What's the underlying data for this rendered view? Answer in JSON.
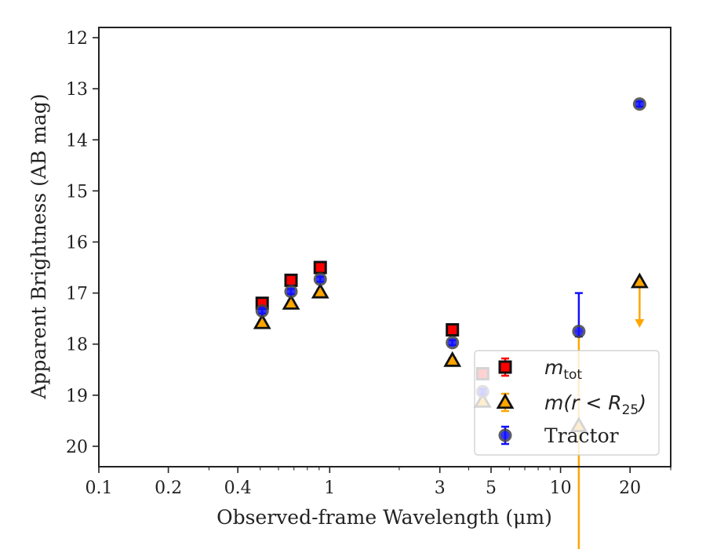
{
  "chart_data": {
    "type": "scatter",
    "title": "",
    "xlabel": "Observed-frame Wavelength (μm)",
    "ylabel": "Apparent Brightness (AB mag)",
    "xscale": "log",
    "xlim": [
      0.1,
      30
    ],
    "ylim": [
      20.4,
      11.8
    ],
    "y_inverted": true,
    "x_ticks": [
      0.1,
      0.2,
      0.4,
      1,
      3,
      5,
      10,
      20
    ],
    "x_tick_labels": [
      "0.1",
      "0.2",
      "0.4",
      "1",
      "3",
      "5",
      "10",
      "20"
    ],
    "y_ticks": [
      12,
      13,
      14,
      15,
      16,
      17,
      18,
      19,
      20
    ],
    "y_tick_labels": [
      "12",
      "13",
      "14",
      "15",
      "16",
      "17",
      "18",
      "19",
      "20"
    ],
    "grid": false,
    "legend_position": "lower-right",
    "series": [
      {
        "name": "m_tot",
        "legend_main": "m",
        "legend_sub": "tot",
        "marker": "square",
        "color": "#ff0000",
        "edgecolor": "#111111",
        "points": [
          {
            "x": 0.51,
            "y": 17.2,
            "err": 0.05
          },
          {
            "x": 0.68,
            "y": 16.75,
            "err": 0.05
          },
          {
            "x": 0.91,
            "y": 16.5,
            "err": 0.05
          },
          {
            "x": 3.4,
            "y": 17.72,
            "err": 0.05
          },
          {
            "x": 4.6,
            "y": 18.58,
            "err": 0.05
          }
        ]
      },
      {
        "name": "m(r < R25)",
        "legend_main": "m(r < R",
        "legend_sub": "25",
        "legend_tail": ")",
        "marker": "triangle",
        "color": "#ffa500",
        "edgecolor": "#111111",
        "points": [
          {
            "x": 0.51,
            "y": 17.58,
            "err": 0.05
          },
          {
            "x": 0.68,
            "y": 17.2,
            "err": 0.05
          },
          {
            "x": 0.91,
            "y": 16.98,
            "err": 0.05
          },
          {
            "x": 3.4,
            "y": 18.32,
            "err": 0.05
          },
          {
            "x": 4.6,
            "y": 19.12,
            "err": 0.05
          },
          {
            "x": 12,
            "y": 19.6,
            "err_low": 2.92,
            "err_high": 1.85
          },
          {
            "x": 22,
            "y": 16.78,
            "upper_limit_to": 17.65
          }
        ]
      },
      {
        "name": "Tractor",
        "marker": "circle",
        "color": "#1010ff",
        "edgecolor": "#444444",
        "points": [
          {
            "x": 0.51,
            "y": 17.35,
            "err": 0.05
          },
          {
            "x": 0.68,
            "y": 16.97,
            "err": 0.05
          },
          {
            "x": 0.91,
            "y": 16.73,
            "err": 0.05
          },
          {
            "x": 3.4,
            "y": 17.97,
            "err": 0.05
          },
          {
            "x": 4.6,
            "y": 18.93,
            "err": 0.05
          },
          {
            "x": 12,
            "y": 17.75,
            "err_low": 0.1,
            "err_high": 0.75
          },
          {
            "x": 22,
            "y": 13.3,
            "err": 0.05
          }
        ]
      }
    ]
  }
}
